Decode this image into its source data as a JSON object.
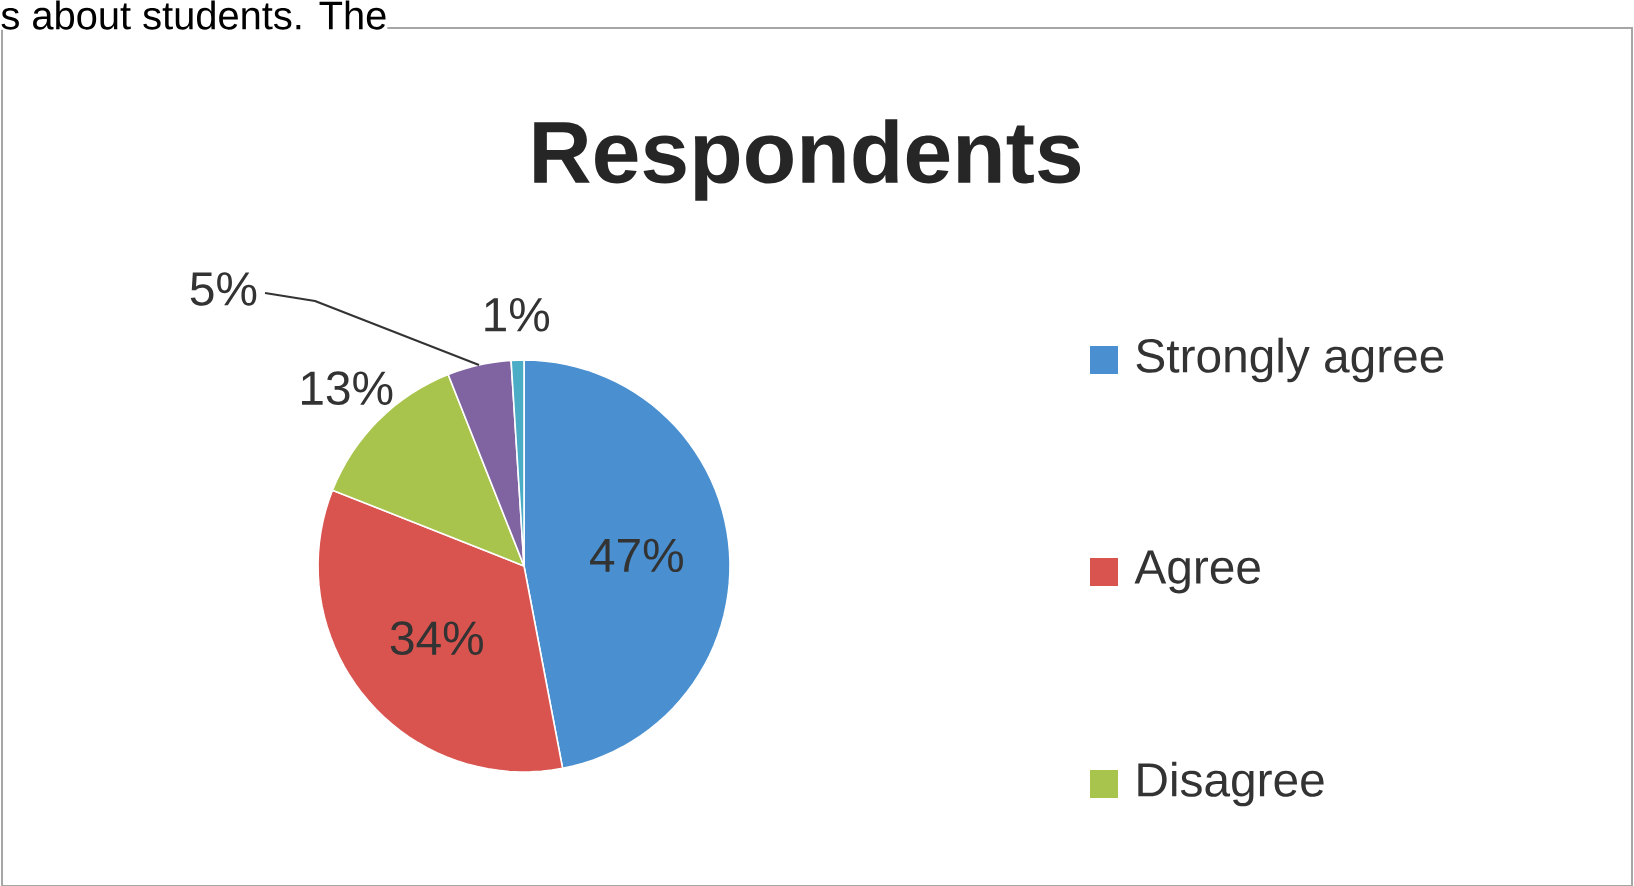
{
  "chart_data": {
    "type": "pie",
    "title": "Respondents",
    "categories": [
      "Strongly agree",
      "Agree",
      "Disagree",
      null,
      null
    ],
    "values": [
      47,
      34,
      13,
      5,
      1
    ],
    "colors": [
      "#4a90d0",
      "#d9534f",
      "#a9c44c",
      "#8064a2",
      "#4bacc6"
    ],
    "value_labels": [
      "47%",
      "34%",
      "13%",
      "5%",
      "1%"
    ],
    "legend": "right",
    "annotations": [
      "s about students. The"
    ]
  }
}
